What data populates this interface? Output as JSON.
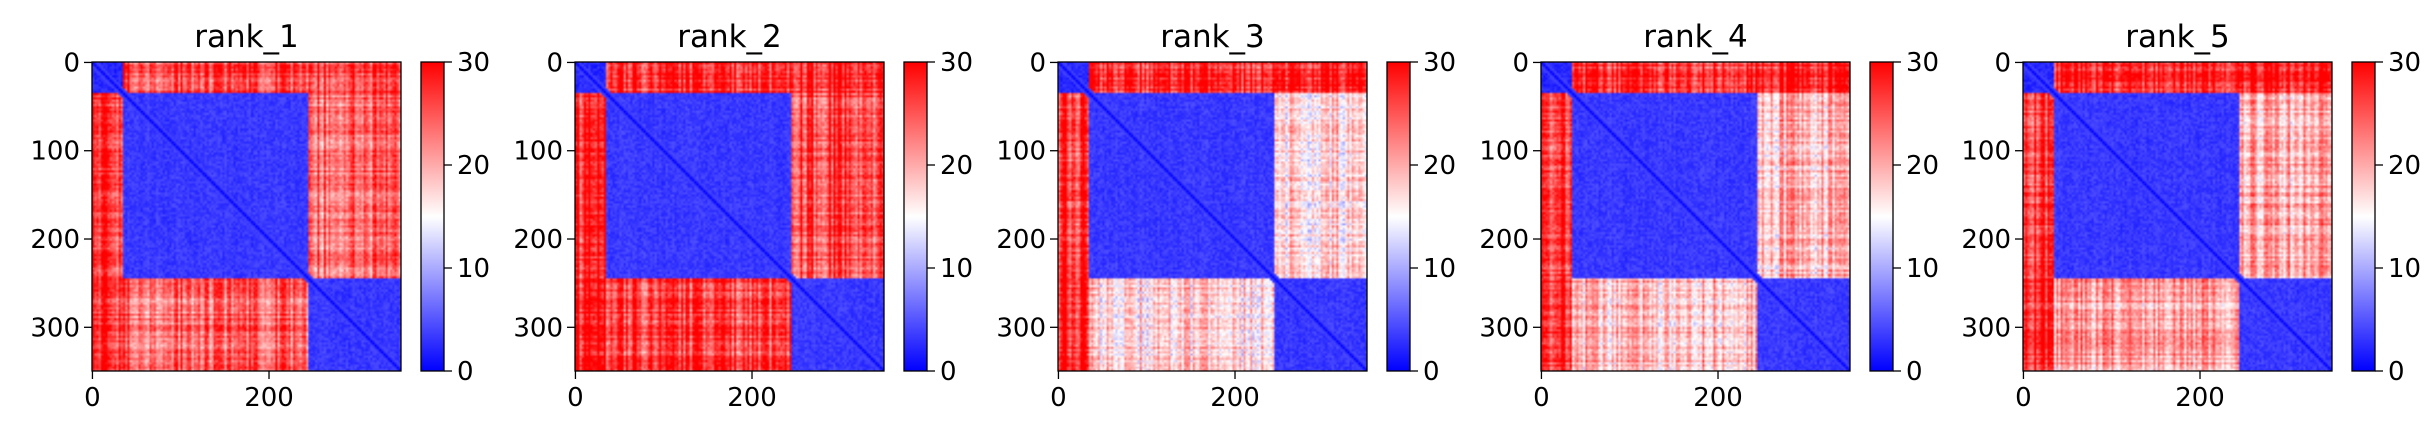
{
  "chart_data": {
    "type": "heatmap",
    "colormap": {
      "name": "bwr",
      "low": "#0000ff",
      "mid": "#ffffff",
      "high": "#ff0000"
    },
    "colorbar": {
      "range": [
        0,
        30
      ],
      "ticks": [
        "0",
        "10",
        "20",
        "30"
      ]
    },
    "panels": [
      {
        "title": "rank_1",
        "n": 350,
        "x_ticks": [
          "0",
          "200"
        ],
        "y_ticks": [
          "0",
          "100",
          "200",
          "300"
        ],
        "domains": [
          [
            0,
            35
          ],
          [
            35,
            245
          ],
          [
            245,
            350
          ]
        ],
        "block_means": [
          [
            2,
            26,
            26
          ],
          [
            26,
            3,
            24
          ],
          [
            26,
            24,
            3
          ]
        ]
      },
      {
        "title": "rank_2",
        "n": 350,
        "x_ticks": [
          "0",
          "200"
        ],
        "y_ticks": [
          "0",
          "100",
          "200",
          "300"
        ],
        "domains": [
          [
            0,
            35
          ],
          [
            35,
            245
          ],
          [
            245,
            350
          ]
        ],
        "block_means": [
          [
            2,
            27,
            28
          ],
          [
            27,
            3,
            26
          ],
          [
            28,
            26,
            3
          ]
        ]
      },
      {
        "title": "rank_3",
        "n": 350,
        "x_ticks": [
          "0",
          "200"
        ],
        "y_ticks": [
          "0",
          "100",
          "200",
          "300"
        ],
        "domains": [
          [
            0,
            35
          ],
          [
            35,
            245
          ],
          [
            245,
            350
          ]
        ],
        "block_means": [
          [
            2,
            27,
            28
          ],
          [
            27,
            3,
            17
          ],
          [
            28,
            17,
            3
          ]
        ]
      },
      {
        "title": "rank_4",
        "n": 350,
        "x_ticks": [
          "0",
          "200"
        ],
        "y_ticks": [
          "0",
          "100",
          "200",
          "300"
        ],
        "domains": [
          [
            0,
            35
          ],
          [
            35,
            245
          ],
          [
            245,
            350
          ]
        ],
        "block_means": [
          [
            2,
            27,
            28
          ],
          [
            27,
            3,
            19
          ],
          [
            28,
            19,
            3
          ]
        ]
      },
      {
        "title": "rank_5",
        "n": 350,
        "x_ticks": [
          "0",
          "200"
        ],
        "y_ticks": [
          "0",
          "100",
          "200",
          "300"
        ],
        "domains": [
          [
            0,
            35
          ],
          [
            35,
            245
          ],
          [
            245,
            350
          ]
        ],
        "block_means": [
          [
            2,
            27,
            28
          ],
          [
            27,
            3,
            20
          ],
          [
            28,
            20,
            3
          ]
        ]
      }
    ]
  }
}
